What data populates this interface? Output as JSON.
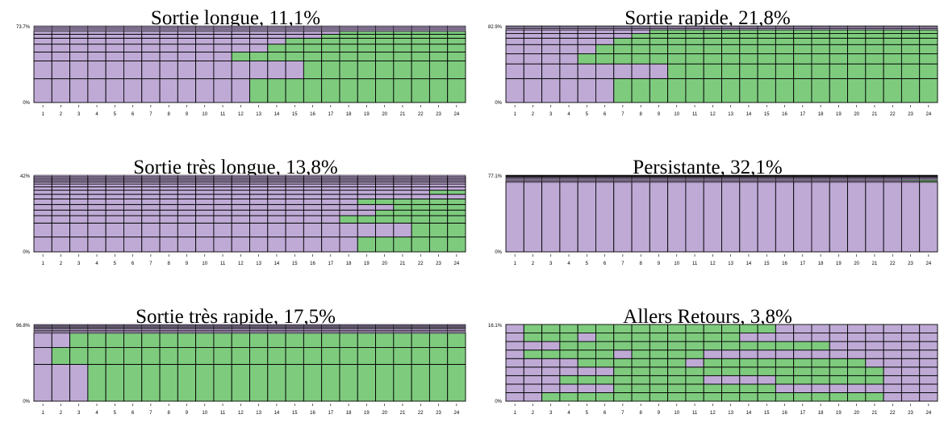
{
  "colors": {
    "a": "#bfaad6",
    "b": "#7ecb7e",
    "grid": "#000000"
  },
  "chart_data": [
    {
      "type": "sequence-frequency",
      "title": "Sortie longue, 11,1%",
      "ylim_label_top": "73.7%",
      "ylim_label_bottom": "0%",
      "x": [
        "1",
        "2",
        "3",
        "4",
        "5",
        "6",
        "7",
        "8",
        "9",
        "10",
        "11",
        "12",
        "13",
        "14",
        "15",
        "16",
        "17",
        "18",
        "19",
        "20",
        "21",
        "22",
        "23",
        "24"
      ],
      "sequences": [
        {
          "weight": 24,
          "switch_at": 13
        },
        {
          "weight": 18,
          "switch_at": 16
        },
        {
          "weight": 9,
          "switch_at": 12
        },
        {
          "weight": 8,
          "switch_at": 14
        },
        {
          "weight": 6,
          "switch_at": 15
        },
        {
          "weight": 4,
          "switch_at": 17
        },
        {
          "weight": 3,
          "switch_at": 18
        },
        {
          "weight": 1.5,
          "switch_at": 0
        },
        {
          "weight": 1.5,
          "switch_at": 0
        },
        {
          "weight": 1.3,
          "switch_at": 0
        },
        {
          "weight": 1.2,
          "switch_at": 0
        }
      ]
    },
    {
      "type": "sequence-frequency",
      "title": "Sortie rapide, 21,8%",
      "ylim_label_top": "82.9%",
      "ylim_label_bottom": "0%",
      "x": [
        "1",
        "2",
        "3",
        "4",
        "5",
        "6",
        "7",
        "8",
        "9",
        "10",
        "11",
        "12",
        "13",
        "14",
        "15",
        "16",
        "17",
        "18",
        "19",
        "20",
        "21",
        "22",
        "23",
        "24"
      ],
      "sequences": [
        {
          "weight": 26,
          "switch_at": 7
        },
        {
          "weight": 16,
          "switch_at": 10
        },
        {
          "weight": 11,
          "switch_at": 5
        },
        {
          "weight": 10,
          "switch_at": 6
        },
        {
          "weight": 7,
          "switch_at": 7
        },
        {
          "weight": 5,
          "switch_at": 8
        },
        {
          "weight": 4,
          "switch_at": 9
        },
        {
          "weight": 1.3,
          "switch_at": 0
        },
        {
          "weight": 1.2,
          "switch_at": 0
        },
        {
          "weight": 1.2,
          "switch_at": 0
        },
        {
          "weight": 0.7,
          "switch_at": 0
        }
      ]
    },
    {
      "type": "sequence-frequency",
      "title": "Sortie très longue, 13,8%",
      "ylim_label_top": "42%",
      "ylim_label_bottom": "0%",
      "x": [
        "1",
        "2",
        "3",
        "4",
        "5",
        "6",
        "7",
        "8",
        "9",
        "10",
        "11",
        "12",
        "13",
        "14",
        "15",
        "16",
        "17",
        "18",
        "19",
        "20",
        "21",
        "22",
        "23",
        "24"
      ],
      "sequences": [
        {
          "weight": 8,
          "switch_at": 19
        },
        {
          "weight": 7.5,
          "switch_at": 22
        },
        {
          "weight": 4,
          "switch_at": 18
        },
        {
          "weight": 3,
          "switch_at": 20
        },
        {
          "weight": 3,
          "switch_at": 21
        },
        {
          "weight": 3,
          "switch_at": 19
        },
        {
          "weight": 2.5,
          "switch_at": 0
        },
        {
          "weight": 2.2,
          "switch_at": 23
        },
        {
          "weight": 1.8,
          "switch_at": 0
        },
        {
          "weight": 1.5,
          "switch_at": 0
        },
        {
          "weight": 1.2,
          "switch_at": 0
        },
        {
          "weight": 1.0,
          "switch_at": 0
        },
        {
          "weight": 1.0,
          "switch_at": 0
        },
        {
          "weight": 0.9,
          "switch_at": 0
        },
        {
          "weight": 0.7,
          "switch_at": 0
        }
      ]
    },
    {
      "type": "sequence-frequency",
      "title": "Persistante, 32,1%",
      "ylim_label_top": "77.1%",
      "ylim_label_bottom": "0%",
      "x": [
        "1",
        "2",
        "3",
        "4",
        "5",
        "6",
        "7",
        "8",
        "9",
        "10",
        "11",
        "12",
        "13",
        "14",
        "15",
        "16",
        "17",
        "18",
        "19",
        "20",
        "21",
        "22",
        "23",
        "24"
      ],
      "sequences": [
        {
          "weight": 70,
          "switch_at": 0
        },
        {
          "weight": 1.2,
          "switch_at": 24
        },
        {
          "weight": 1.0,
          "switch_at": 23
        },
        {
          "weight": 1.0,
          "switch_at": 0
        },
        {
          "weight": 0.9,
          "switch_at": 0
        },
        {
          "weight": 0.8,
          "switch_at": 0
        },
        {
          "weight": 0.7,
          "switch_at": 0
        },
        {
          "weight": 0.6,
          "switch_at": 0
        },
        {
          "weight": 0.5,
          "switch_at": 0
        },
        {
          "weight": 0.4,
          "switch_at": 0
        }
      ]
    },
    {
      "type": "sequence-frequency",
      "title": "Sortie très rapide, 17,5%",
      "ylim_label_top": "96.8%",
      "ylim_label_bottom": "0%",
      "x": [
        "1",
        "2",
        "3",
        "4",
        "5",
        "6",
        "7",
        "8",
        "9",
        "10",
        "11",
        "12",
        "13",
        "14",
        "15",
        "16",
        "17",
        "18",
        "19",
        "20",
        "21",
        "22",
        "23",
        "24"
      ],
      "sequences": [
        {
          "weight": 46,
          "switch_at": 4
        },
        {
          "weight": 21,
          "switch_at": 2
        },
        {
          "weight": 18,
          "switch_at": 3
        },
        {
          "weight": 1.8,
          "switch_at": 0
        },
        {
          "weight": 1.6,
          "switch_at": 0
        },
        {
          "weight": 1.5,
          "switch_at": 0
        },
        {
          "weight": 1.4,
          "switch_at": 0
        },
        {
          "weight": 1.2,
          "switch_at": 0
        },
        {
          "weight": 1.1,
          "switch_at": 0
        },
        {
          "weight": 1.0,
          "switch_at": 0
        },
        {
          "weight": 1.0,
          "switch_at": 0
        },
        {
          "weight": 0.2,
          "switch_at": 0
        }
      ]
    },
    {
      "type": "sequence-frequency",
      "title": "Allers Retours, 3,8%",
      "ylim_label_top": "16.1%",
      "ylim_label_bottom": "0%",
      "x": [
        "1",
        "2",
        "3",
        "4",
        "5",
        "6",
        "7",
        "8",
        "9",
        "10",
        "11",
        "12",
        "13",
        "14",
        "15",
        "16",
        "17",
        "18",
        "19",
        "20",
        "21",
        "22",
        "23",
        "24"
      ],
      "sequences": [
        {
          "weight": 1.6,
          "segments": [
            [
              3,
              21
            ]
          ]
        },
        {
          "weight": 1.6,
          "segments": [
            [
              7,
              15
            ]
          ]
        },
        {
          "weight": 1.6,
          "segments": [
            [
              4,
              11
            ],
            [
              16,
              21
            ]
          ]
        },
        {
          "weight": 1.6,
          "segments": [
            [
              7,
              21
            ]
          ]
        },
        {
          "weight": 1.6,
          "segments": [
            [
              5,
              10
            ],
            [
              12,
              20
            ]
          ]
        },
        {
          "weight": 1.6,
          "segments": [
            [
              2,
              6
            ],
            [
              8,
              11
            ]
          ]
        },
        {
          "weight": 1.6,
          "segments": [
            [
              4,
              18
            ]
          ]
        },
        {
          "weight": 1.6,
          "segments": [
            [
              2,
              4
            ],
            [
              6,
              13
            ]
          ]
        },
        {
          "weight": 1.6,
          "segments": [
            [
              2,
              15
            ]
          ]
        }
      ]
    }
  ]
}
